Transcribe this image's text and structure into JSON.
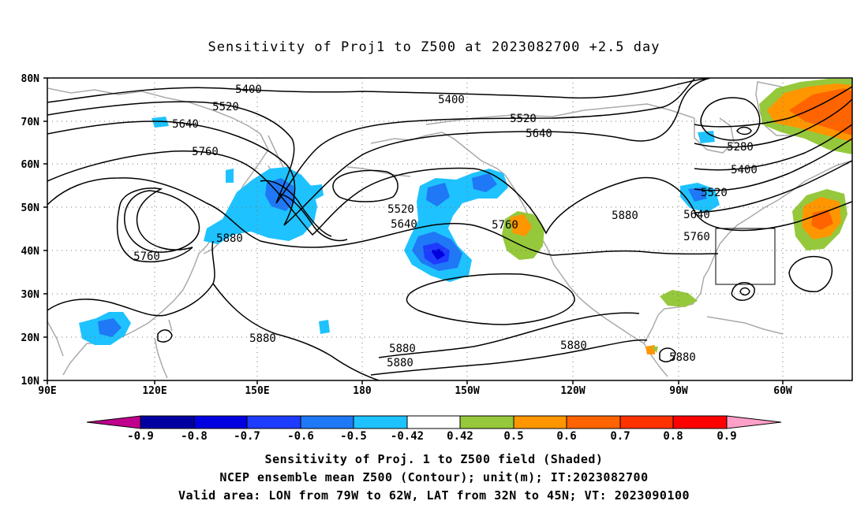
{
  "title": "Sensitivity of Proj1 to Z500 at 2023082700 +2.5 day",
  "lat_labels": [
    "80N",
    "70N",
    "60N",
    "50N",
    "40N",
    "30N",
    "20N",
    "10N"
  ],
  "lon_labels": [
    "90E",
    "120E",
    "150E",
    "180",
    "150W",
    "120W",
    "90W",
    "60W"
  ],
  "contour_labels": [
    "5400",
    "5400",
    "5520",
    "5520",
    "5640",
    "5640",
    "5760",
    "5280",
    "5400",
    "5520",
    "5760",
    "5880",
    "5520",
    "5640",
    "5640",
    "5760",
    "5760",
    "5880",
    "5880",
    "5880",
    "5880",
    "5880",
    "5880"
  ],
  "colorbar": {
    "labels": [
      "-0.9",
      "-0.8",
      "-0.7",
      "-0.6",
      "-0.5",
      "-0.42",
      "0.42",
      "0.5",
      "0.6",
      "0.7",
      "0.8",
      "0.9"
    ],
    "colors": [
      "#c0008c",
      "#0000a0",
      "#0000e0",
      "#1e3cff",
      "#1f78f5",
      "#1ec2ff",
      "#ffffff",
      "#96c83c",
      "#ff9600",
      "#ff6400",
      "#ff3200",
      "#ff0000",
      "#ffa0c8"
    ]
  },
  "captions": [
    "Sensitivity of Proj. 1 to Z500 field (Shaded)",
    "NCEP ensemble mean Z500 (Contour); unit(m); IT:2023082700",
    "Valid area: LON from 79W to 62W, LAT from 32N to 45N; VT: 2023090100"
  ]
}
